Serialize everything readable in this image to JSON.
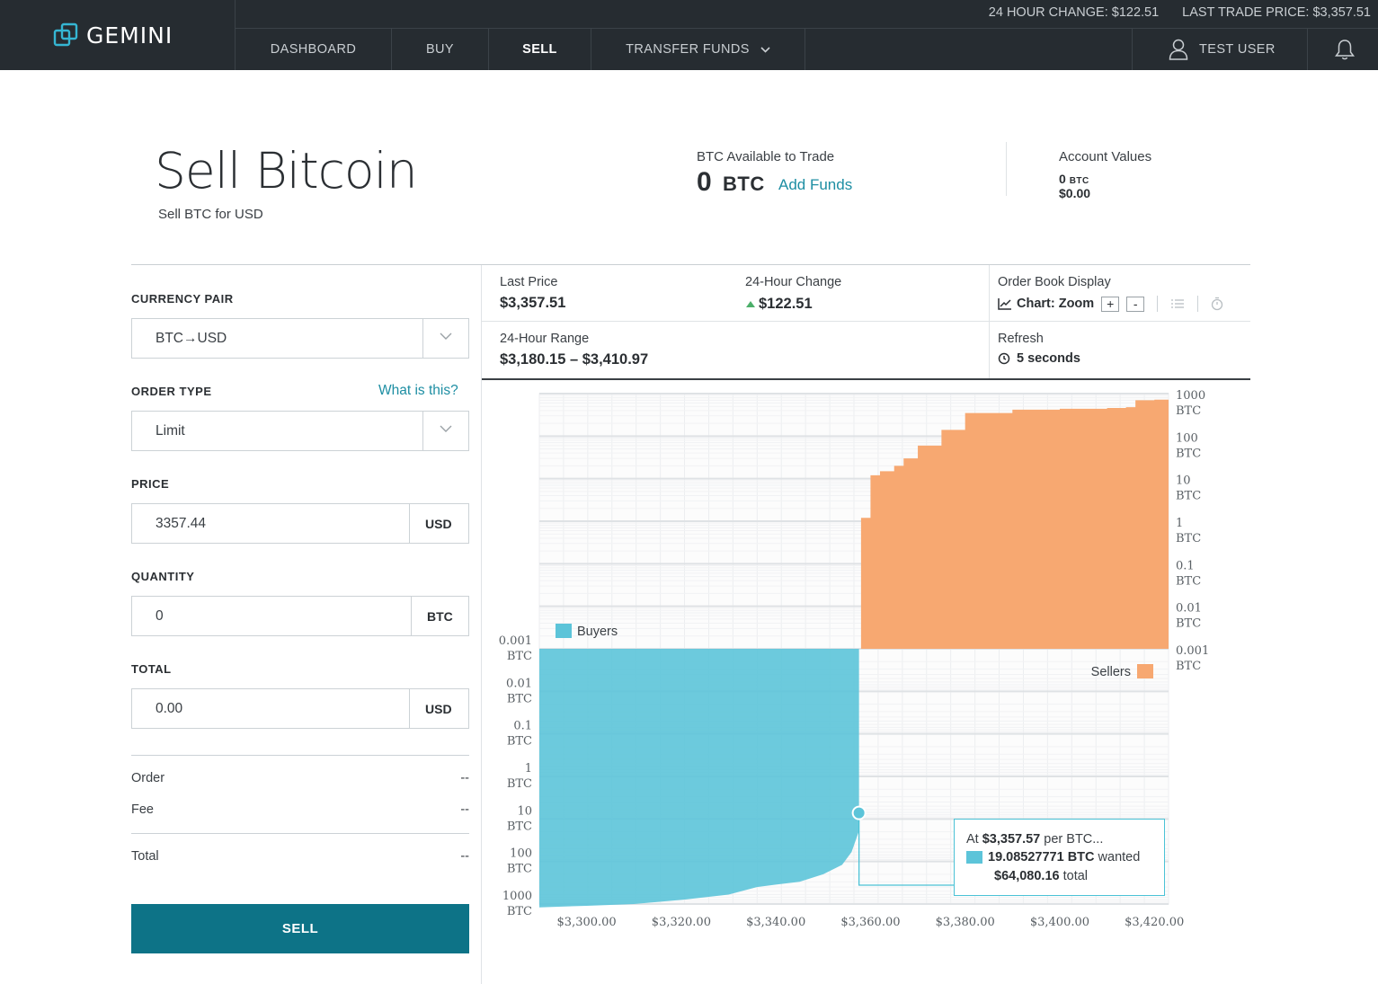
{
  "brand": {
    "name": "GEMINI"
  },
  "ticker": {
    "change": "24 HOUR CHANGE: $122.51",
    "last_price": "LAST TRADE PRICE: $3,357.51"
  },
  "nav": {
    "dashboard": "DASHBOARD",
    "buy": "BUY",
    "sell": "SELL",
    "transfer": "TRANSFER FUNDS"
  },
  "user": {
    "name": "TEST USER"
  },
  "header": {
    "title": "Sell Bitcoin",
    "subtitle": "Sell BTC for USD",
    "avail_label": "BTC Available to Trade",
    "avail_value": "0",
    "avail_unit": "BTC",
    "add_funds": "Add Funds",
    "account_label": "Account Values",
    "account_btc": "0",
    "account_btc_unit": "BTC",
    "account_usd": "$0.00"
  },
  "form": {
    "pair_label": "CURRENCY PAIR",
    "pair_value": "BTC→USD",
    "order_type_label": "ORDER TYPE",
    "order_type_help": "What is this?",
    "order_type_value": "Limit",
    "price_label": "PRICE",
    "price_value": "3357.44",
    "price_unit": "USD",
    "quantity_label": "QUANTITY",
    "quantity_value": "0",
    "quantity_unit": "BTC",
    "total_label": "TOTAL",
    "total_value": "0.00",
    "total_unit": "USD",
    "summary": {
      "order_label": "Order",
      "order_value": "--",
      "fee_label": "Fee",
      "fee_value": "--",
      "total_label": "Total",
      "total_value": "--"
    },
    "sell_button": "SELL"
  },
  "stats": {
    "last_price_label": "Last Price",
    "last_price": "$3,357.51",
    "change_label": "24-Hour Change",
    "change": "$122.51",
    "range_label": "24-Hour Range",
    "range": "$3,180.15 – $3,410.97",
    "obd_label": "Order Book Display",
    "obd_mode": "Chart: Zoom",
    "zoom_in": "+",
    "zoom_out": "-",
    "refresh_label": "Refresh",
    "refresh_value": "5 seconds"
  },
  "chart_data": {
    "type": "area",
    "series": [
      {
        "name": "Buyers",
        "color": "#5cc4d9",
        "x": [
          3290,
          3300,
          3310,
          3320,
          3330,
          3336,
          3340,
          3345,
          3350,
          3354,
          3356,
          3357.57
        ],
        "y": [
          1200,
          1100,
          1000,
          800,
          600,
          400,
          350,
          300,
          200,
          120,
          60,
          19.08527771
        ]
      },
      {
        "name": "Sellers",
        "color": "#f7a871",
        "x": [
          3357.57,
          3358,
          3360,
          3362,
          3365,
          3367,
          3370,
          3375,
          3380,
          3390,
          3400,
          3410,
          3414,
          3416,
          3420,
          3423
        ],
        "y": [
          0.001,
          1.2,
          12,
          15,
          20,
          30,
          60,
          140,
          350,
          420,
          440,
          460,
          480,
          700,
          720,
          720
        ]
      }
    ],
    "x_ticks": [
      "$3,300.00",
      "$3,320.00",
      "$3,340.00",
      "$3,360.00",
      "$3,380.00",
      "$3,400.00",
      "$3,420.00"
    ],
    "x_tick_values": [
      3300,
      3320,
      3340,
      3360,
      3380,
      3400,
      3420
    ],
    "xlim": [
      3290,
      3423
    ],
    "y_scale": "log",
    "buyers_y_ticks": [
      "0.001",
      "0.01",
      "0.1",
      "1",
      "10",
      "100",
      "1000"
    ],
    "sellers_y_ticks": [
      "1000",
      "100",
      "10",
      "1",
      "0.1",
      "0.01",
      "0.001"
    ],
    "y_unit": "BTC",
    "legend": {
      "buyers": "Buyers",
      "sellers": "Sellers"
    },
    "tooltip": {
      "at": "At",
      "price": "$3,357.57",
      "per": "per BTC...",
      "wanted_amount": "19.08527771 BTC",
      "wanted": "wanted",
      "total_amount": "$64,080.16",
      "total": "total"
    }
  }
}
